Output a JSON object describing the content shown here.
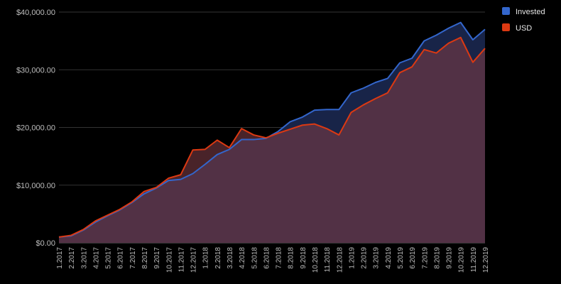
{
  "colors": {
    "background": "#000000",
    "invested": "#3366cc",
    "usd": "#dc3912",
    "grid": "#333333"
  },
  "legend": {
    "position": "right",
    "items": [
      {
        "label": "Invested"
      },
      {
        "label": "USD"
      }
    ]
  },
  "chart_data": {
    "type": "area",
    "title": "",
    "xlabel": "",
    "ylabel": "",
    "ylim": [
      0,
      40000
    ],
    "y_ticks": [
      "$0.00",
      "$10,000.00",
      "$20,000.00",
      "$30,000.00",
      "$40,000.00"
    ],
    "categories": [
      "1.2017",
      "2.2017",
      "3.2017",
      "4.2017",
      "5.2017",
      "6.2017",
      "7.2017",
      "8.2017",
      "9.2017",
      "10.2017",
      "11.2017",
      "12.2017",
      "1.2018",
      "2.2018",
      "3.2018",
      "4.2018",
      "5.2018",
      "6.2018",
      "7.2018",
      "8.2018",
      "9.2018",
      "10.2018",
      "11.2018",
      "12.2018",
      "1.2019",
      "2.2019",
      "3.2019",
      "4.2019",
      "5.2019",
      "6.2019",
      "7.2019",
      "8.2019",
      "9.2019",
      "10.2019",
      "11.2019",
      "12.2019"
    ],
    "series": [
      {
        "name": "Invested",
        "values": [
          1000,
          1200,
          2200,
          3600,
          4700,
          5700,
          7000,
          8500,
          9500,
          10800,
          11000,
          12000,
          13600,
          15300,
          16200,
          17900,
          17900,
          18100,
          19300,
          21000,
          21800,
          23000,
          23100,
          23100,
          26000,
          26800,
          27800,
          28500,
          31200,
          32000,
          35000,
          36000,
          37200,
          38200,
          35200,
          37000
        ]
      },
      {
        "name": "USD",
        "values": [
          1000,
          1300,
          2300,
          3800,
          4800,
          5800,
          7100,
          8900,
          9600,
          11200,
          11800,
          16100,
          16200,
          17800,
          16500,
          19800,
          18700,
          18200,
          19000,
          19700,
          20400,
          20600,
          19800,
          18700,
          22600,
          23900,
          25000,
          26000,
          29500,
          30500,
          33500,
          32900,
          34600,
          35600,
          31300,
          33700
        ]
      }
    ]
  }
}
